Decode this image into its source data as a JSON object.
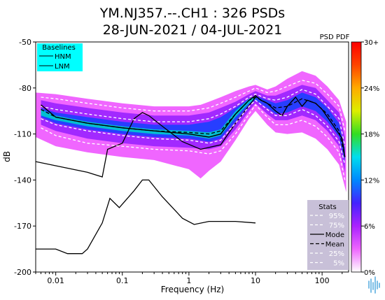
{
  "chart_data": {
    "type": "heatmap",
    "title": "YM.NJ357.--.CH1 : 326 PSDs",
    "subtitle": "28-JUN-2021 / 04-JUL-2021",
    "xlabel": "Frequency (Hz)",
    "ylabel": "dB",
    "x_scale": "log",
    "xlim": [
      0.005,
      250
    ],
    "ylim": [
      -200,
      -50
    ],
    "x_ticks": [
      0.01,
      0.1,
      1,
      10,
      100
    ],
    "x_tick_labels": [
      "0.01",
      "0.1",
      "1",
      "10",
      "100"
    ],
    "y_ticks": [
      -50,
      -80,
      -110,
      -140,
      -170,
      -200
    ],
    "y_tick_labels": [
      "-50",
      "-80",
      "-110",
      "-140",
      "-170",
      "-200"
    ],
    "colorbar": {
      "label": "PSD PDF",
      "tick_labels": [
        "0%",
        "6%",
        "12%",
        "18%",
        "24%",
        "30+"
      ],
      "range": [
        0,
        30
      ],
      "colors": [
        "#ffffff",
        "#ee66ff",
        "#aa22ff",
        "#4422ff",
        "#0088ff",
        "#00ddee",
        "#33dd22",
        "#ddee00",
        "#ffaa00",
        "#ff4400",
        "#ff0000"
      ]
    },
    "baselines_legend": {
      "title": "Baselines",
      "entries": [
        "HNM",
        "LNM"
      ],
      "background": "#00ffff",
      "placement": "top-left"
    },
    "stats_legend": {
      "title": "Stats",
      "entries": [
        "95%",
        "75%",
        "Mode",
        "Mean",
        "25%",
        "5%"
      ],
      "background": "#c8c0d8",
      "placement": "bottom-right"
    },
    "series": [
      {
        "name": "HNM",
        "color": "#000000",
        "dash": "solid",
        "x": [
          0.005,
          0.03,
          0.05,
          0.06,
          0.1,
          0.15,
          0.2,
          0.25,
          0.4,
          0.8,
          1.5,
          3,
          5,
          10
        ],
        "y": [
          -128,
          -135,
          -138,
          -120,
          -116,
          -100,
          -96,
          -98,
          -105,
          -115,
          -120,
          -117,
          -103,
          -86
        ]
      },
      {
        "name": "LNM",
        "color": "#000000",
        "dash": "solid",
        "x": [
          0.005,
          0.01,
          0.015,
          0.025,
          0.03,
          0.05,
          0.065,
          0.09,
          0.15,
          0.2,
          0.25,
          0.4,
          0.8,
          1.2,
          2,
          5,
          10
        ],
        "y": [
          -185,
          -185,
          -188,
          -188,
          -185,
          -168,
          -152,
          -158,
          -147,
          -140,
          -140,
          -151,
          -165,
          -169,
          -167,
          -167,
          -168
        ]
      },
      {
        "name": "95%",
        "color": "#ffffff",
        "dash": "4,3",
        "x": [
          0.006,
          0.01,
          0.03,
          0.1,
          0.3,
          1,
          2,
          3,
          5,
          8,
          10,
          15,
          20,
          30,
          50,
          80,
          120,
          180,
          220
        ],
        "y": [
          -86,
          -87,
          -90,
          -93,
          -95,
          -95,
          -93,
          -90,
          -86,
          -82,
          -80,
          -83,
          -82,
          -79,
          -75,
          -77,
          -84,
          -92,
          -108
        ]
      },
      {
        "name": "75%",
        "color": "#ffffff",
        "dash": "4,3",
        "x": [
          0.006,
          0.01,
          0.03,
          0.1,
          0.3,
          1,
          2,
          3,
          5,
          8,
          10,
          15,
          20,
          30,
          50,
          80,
          120,
          180,
          220
        ],
        "y": [
          -92,
          -94,
          -97,
          -100,
          -102,
          -102,
          -100,
          -97,
          -92,
          -86,
          -84,
          -87,
          -88,
          -86,
          -81,
          -84,
          -92,
          -100,
          -118
        ]
      },
      {
        "name": "Mode",
        "color": "#000000",
        "dash": "solid",
        "x": [
          0.006,
          0.01,
          0.03,
          0.1,
          0.3,
          1,
          2,
          3,
          5,
          8,
          10,
          12,
          15,
          20,
          25,
          30,
          40,
          50,
          60,
          80,
          100,
          150,
          200,
          220
        ],
        "y": [
          -91,
          -99,
          -103,
          -106,
          -108,
          -110,
          -112,
          -110,
          -97,
          -88,
          -85,
          -88,
          -90,
          -95,
          -98,
          -92,
          -86,
          -92,
          -88,
          -90,
          -94,
          -105,
          -113,
          -125
        ]
      },
      {
        "name": "Mean",
        "color": "#000000",
        "dash": "5,3",
        "x": [
          0.006,
          0.01,
          0.03,
          0.1,
          0.3,
          1,
          2,
          3,
          5,
          8,
          10,
          15,
          20,
          30,
          50,
          80,
          120,
          180,
          220
        ],
        "y": [
          -94,
          -99,
          -103,
          -106,
          -108,
          -109,
          -110,
          -108,
          -97,
          -88,
          -86,
          -90,
          -93,
          -92,
          -87,
          -90,
          -97,
          -108,
          -125
        ]
      },
      {
        "name": "25%",
        "color": "#ffffff",
        "dash": "4,3",
        "x": [
          0.006,
          0.01,
          0.03,
          0.1,
          0.3,
          1,
          2,
          3,
          5,
          8,
          10,
          15,
          20,
          30,
          50,
          80,
          120,
          180,
          220
        ],
        "y": [
          -100,
          -104,
          -108,
          -111,
          -113,
          -114,
          -116,
          -114,
          -103,
          -92,
          -88,
          -94,
          -98,
          -98,
          -94,
          -98,
          -105,
          -115,
          -130
        ]
      },
      {
        "name": "5%",
        "color": "#ffffff",
        "dash": "4,3",
        "x": [
          0.006,
          0.01,
          0.03,
          0.1,
          0.3,
          1,
          2,
          3,
          5,
          8,
          10,
          15,
          20,
          30,
          50,
          80,
          120,
          180,
          220
        ],
        "y": [
          -106,
          -111,
          -116,
          -118,
          -120,
          -121,
          -123,
          -121,
          -110,
          -97,
          -91,
          -99,
          -104,
          -104,
          -101,
          -105,
          -112,
          -122,
          -140
        ]
      }
    ],
    "pdf_bands": [
      {
        "level": 1,
        "x": [
          0.005,
          0.01,
          0.03,
          0.1,
          0.3,
          1,
          1.5,
          2,
          3,
          5,
          8,
          10,
          15,
          20,
          30,
          50,
          80,
          120,
          180,
          230
        ],
        "upper": [
          -83,
          -84,
          -87,
          -90,
          -92,
          -92,
          -91,
          -89,
          -86,
          -82,
          -79,
          -78,
          -81,
          -79,
          -74,
          -69,
          -72,
          -79,
          -88,
          -102
        ],
        "lower": [
          -112,
          -118,
          -122,
          -125,
          -127,
          -133,
          -139,
          -134,
          -128,
          -114,
          -100,
          -95,
          -104,
          -109,
          -110,
          -109,
          -113,
          -120,
          -130,
          -148
        ]
      },
      {
        "level": 2,
        "x": [
          0.006,
          0.01,
          0.03,
          0.1,
          0.3,
          1,
          2,
          3,
          5,
          8,
          10,
          15,
          20,
          30,
          50,
          80,
          120,
          180,
          220
        ],
        "upper": [
          -88,
          -90,
          -93,
          -96,
          -98,
          -98,
          -96,
          -93,
          -89,
          -84,
          -82,
          -85,
          -85,
          -82,
          -78,
          -80,
          -88,
          -96,
          -112
        ],
        "lower": [
          -104,
          -108,
          -113,
          -116,
          -118,
          -119,
          -120,
          -118,
          -107,
          -95,
          -90,
          -97,
          -101,
          -101,
          -98,
          -101,
          -108,
          -118,
          -135
        ]
      },
      {
        "level": 3,
        "x": [
          0.006,
          0.01,
          0.03,
          0.1,
          0.3,
          1,
          2,
          3,
          5,
          8,
          10,
          15,
          20,
          30,
          50,
          80,
          120,
          180,
          220
        ],
        "upper": [
          -93,
          -96,
          -99,
          -102,
          -104,
          -104,
          -102,
          -99,
          -93,
          -87,
          -85,
          -88,
          -90,
          -88,
          -83,
          -86,
          -93,
          -103,
          -120
        ],
        "lower": [
          -99,
          -103,
          -107,
          -110,
          -112,
          -113,
          -115,
          -113,
          -102,
          -91,
          -88,
          -93,
          -97,
          -96,
          -92,
          -95,
          -102,
          -112,
          -128
        ]
      },
      {
        "level": 4,
        "x": [
          0.006,
          0.01,
          0.03,
          0.1,
          0.3,
          1,
          2,
          3,
          5,
          8,
          10
        ],
        "upper": [
          -94,
          -98,
          -102,
          -105,
          -107,
          -108,
          -109,
          -107,
          -95,
          -87,
          -85
        ],
        "lower": [
          -98,
          -101,
          -105,
          -108,
          -110,
          -111,
          -113,
          -111,
          -99,
          -90,
          -87
        ]
      }
    ]
  }
}
